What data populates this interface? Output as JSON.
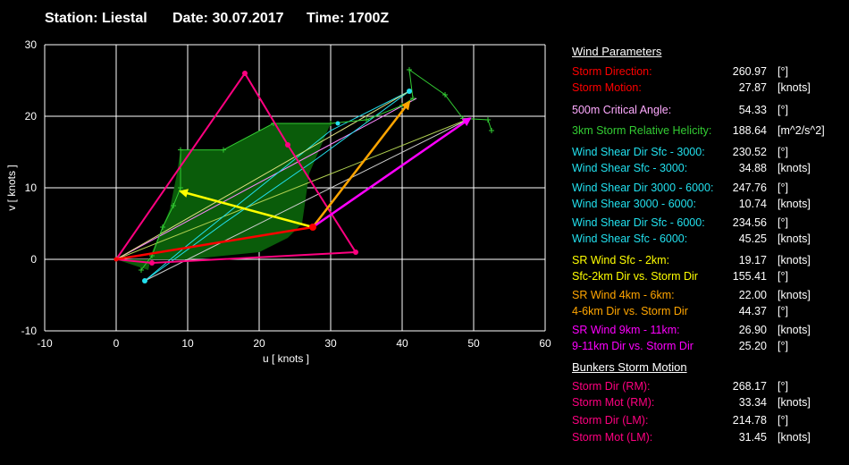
{
  "header": {
    "station": "Station: Liestal",
    "date": "Date: 30.07.2017",
    "time": "Time: 1700Z"
  },
  "colors": {
    "background": "#000000",
    "grid": "#ffffff",
    "hodo_fill": "#0a5c0a",
    "red": "#ff0000",
    "pink": "#ff0080",
    "violet": "#ff88ff",
    "green": "#33cc33",
    "cyan": "#22e0ee",
    "yellow": "#ffff00",
    "orange": "#ffa500",
    "magenta": "#ff00ff"
  },
  "chart_data": {
    "type": "scatter",
    "xlabel": "u  [ knots ]",
    "ylabel": "v  [ knots ]",
    "xlim": [
      -10,
      60
    ],
    "ylim": [
      -10,
      30
    ],
    "xticks": [
      "-10",
      "0",
      "10",
      "20",
      "30",
      "40",
      "50",
      "60"
    ],
    "yticks": [
      "30",
      "20",
      "10",
      "0",
      "-10"
    ],
    "grid": true,
    "hodograph_area": [
      [
        0,
        0
      ],
      [
        4.5,
        -1.5
      ],
      [
        5,
        1
      ],
      [
        7.5,
        7
      ],
      [
        8.5,
        12
      ],
      [
        9,
        15.3
      ],
      [
        15,
        15.3
      ],
      [
        22,
        19
      ],
      [
        30,
        19
      ],
      [
        27,
        12
      ],
      [
        26,
        5
      ],
      [
        24,
        3
      ],
      [
        20,
        1
      ],
      [
        10,
        0
      ]
    ],
    "hodograph_sfc": [
      [
        3.5,
        -1.5
      ],
      [
        5,
        0.5
      ],
      [
        6.5,
        4.5
      ],
      [
        8,
        7.5
      ],
      [
        9,
        10
      ],
      [
        9,
        15.3
      ],
      [
        15,
        15.3
      ],
      [
        22,
        19
      ],
      [
        30,
        19
      ],
      [
        35,
        19.5
      ],
      [
        40,
        21.5
      ],
      [
        41.5,
        22.5
      ],
      [
        41,
        26.5
      ],
      [
        46,
        23
      ],
      [
        48.5,
        19.7
      ],
      [
        52,
        19.5
      ],
      [
        52.5,
        18
      ]
    ],
    "cyan_line_1": [
      [
        4,
        -3
      ],
      [
        10,
        2
      ],
      [
        20,
        10
      ],
      [
        30,
        18
      ],
      [
        41,
        23.5
      ]
    ],
    "cyan_line_2": [
      [
        4,
        -3
      ],
      [
        15,
        5
      ],
      [
        28,
        14
      ],
      [
        41,
        23.5
      ]
    ],
    "cyan_line_3": [
      [
        4,
        -3
      ],
      [
        49.5,
        19.7
      ]
    ],
    "shear_sfc_3km": [
      [
        0,
        0
      ],
      [
        41,
        23.5
      ]
    ],
    "pink_sfc_6km": [
      [
        0,
        0
      ],
      [
        18,
        26
      ],
      [
        24,
        16
      ],
      [
        33.5,
        1
      ],
      [
        5,
        -0.5
      ],
      [
        0,
        0
      ]
    ],
    "rm_vector": [
      [
        0,
        0
      ],
      [
        27.5,
        4.5
      ]
    ],
    "yellow_vector": [
      [
        27.5,
        4.5
      ],
      [
        9,
        9.5
      ]
    ],
    "orange_vector": [
      [
        27.5,
        4.5
      ],
      [
        41,
        22
      ]
    ],
    "magenta_vector": [
      [
        27.5,
        4.5
      ],
      [
        49.5,
        19.7
      ]
    ],
    "green_mean_line": [
      [
        0,
        0
      ],
      [
        49.5,
        19.7
      ]
    ],
    "violet_line": [
      [
        0,
        0
      ],
      [
        42,
        22.5
      ]
    ],
    "storm_motion_point": [
      27.5,
      4.5
    ],
    "bunkers_rm_point": [
      18,
      26
    ],
    "bunkers_lm_point": [
      24,
      16
    ]
  },
  "panel": {
    "wind_title": "Wind Parameters",
    "bunkers_title": "Bunkers Storm Motion",
    "wind_rows": [
      {
        "label": "Storm Direction:",
        "value": "260.97",
        "unit": "[°]",
        "color": "#ff0000"
      },
      {
        "label": "Storm Motion:",
        "value": "27.87",
        "unit": "[knots]",
        "color": "#ff0000"
      },
      {
        "label": "500m Critical Angle:",
        "value": "54.33",
        "unit": "[°]",
        "color": "#ffaaff"
      },
      {
        "label": "3km Storm Relative Helicity:",
        "value": "188.64",
        "unit": "[m^2/s^2]",
        "color": "#33cc33"
      },
      {
        "label": "Wind Shear Dir Sfc - 3000:",
        "value": "230.52",
        "unit": "[°]",
        "color": "#22e0ee"
      },
      {
        "label": "Wind Shear Sfc - 3000:",
        "value": "34.88",
        "unit": "[knots]",
        "color": "#22e0ee"
      },
      {
        "label": "Wind Shear Dir 3000 - 6000:",
        "value": "247.76",
        "unit": "[°]",
        "color": "#22e0ee"
      },
      {
        "label": "Wind Shear 3000 - 6000:",
        "value": "10.74",
        "unit": "[knots]",
        "color": "#22e0ee"
      },
      {
        "label": "Wind Shear Dir Sfc - 6000:",
        "value": "234.56",
        "unit": "[°]",
        "color": "#22e0ee"
      },
      {
        "label": "Wind Shear Sfc - 6000:",
        "value": "45.25",
        "unit": "[knots]",
        "color": "#22e0ee"
      },
      {
        "label": "SR Wind Sfc - 2km:",
        "value": "19.17",
        "unit": "[knots]",
        "color": "#ffff00"
      },
      {
        "label": "Sfc-2km Dir vs. Storm Dir",
        "value": "155.41",
        "unit": "[°]",
        "color": "#ffff00"
      },
      {
        "label": "SR Wind 4km - 6km:",
        "value": "22.00",
        "unit": "[knots]",
        "color": "#ffa500"
      },
      {
        "label": "4-6km Dir vs. Storm Dir",
        "value": "44.37",
        "unit": "[°]",
        "color": "#ffa500"
      },
      {
        "label": "SR Wind 9km - 11km:",
        "value": "26.90",
        "unit": "[knots]",
        "color": "#ff00ff"
      },
      {
        "label": "9-11km Dir vs. Storm Dir",
        "value": "25.20",
        "unit": "[°]",
        "color": "#ff00ff"
      }
    ],
    "bunkers_rows": [
      {
        "label": "Storm Dir (RM):",
        "value": "268.17",
        "unit": "[°]",
        "color": "#ff0080"
      },
      {
        "label": "Storm Mot (RM):",
        "value": "33.34",
        "unit": "[knots]",
        "color": "#ff0080"
      },
      {
        "label": "Storm Dir (LM):",
        "value": "214.78",
        "unit": "[°]",
        "color": "#ff0080"
      },
      {
        "label": "Storm Mot (LM):",
        "value": "31.45",
        "unit": "[knots]",
        "color": "#ff0080"
      }
    ]
  }
}
